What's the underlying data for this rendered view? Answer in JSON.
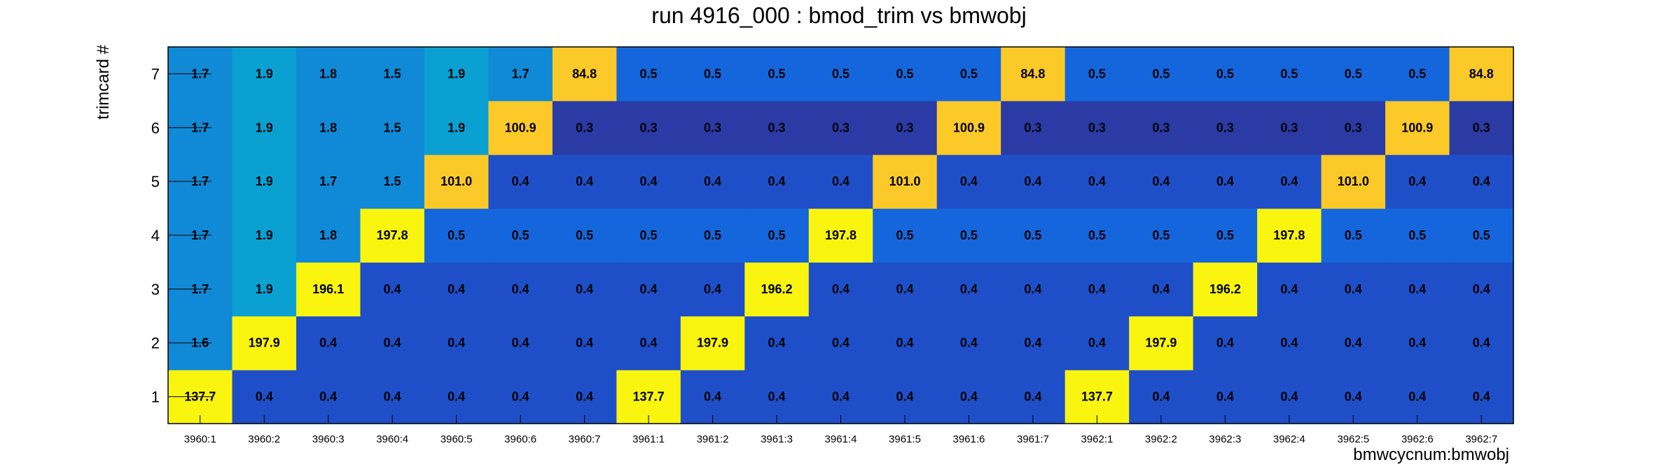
{
  "chart_data": {
    "type": "heatmap",
    "title": "run 4916_000 : bmod_trim vs bmwobj",
    "xlabel": "bmwcycnum:bmwobj",
    "ylabel": "trimcard #",
    "x_categories": [
      "3960:1",
      "3960:2",
      "3960:3",
      "3960:4",
      "3960:5",
      "3960:6",
      "3960:7",
      "3961:1",
      "3961:2",
      "3961:3",
      "3961:4",
      "3961:5",
      "3961:6",
      "3961:7",
      "3962:1",
      "3962:2",
      "3962:3",
      "3962:4",
      "3962:5",
      "3962:6",
      "3962:7"
    ],
    "y_categories": [
      "1",
      "2",
      "3",
      "4",
      "5",
      "6",
      "7"
    ],
    "values": [
      [
        137.7,
        0.4,
        0.4,
        0.4,
        0.4,
        0.4,
        0.4,
        137.7,
        0.4,
        0.4,
        0.4,
        0.4,
        0.4,
        0.4,
        137.7,
        0.4,
        0.4,
        0.4,
        0.4,
        0.4,
        0.4
      ],
      [
        1.6,
        197.9,
        0.4,
        0.4,
        0.4,
        0.4,
        0.4,
        0.4,
        197.9,
        0.4,
        0.4,
        0.4,
        0.4,
        0.4,
        0.4,
        197.9,
        0.4,
        0.4,
        0.4,
        0.4,
        0.4
      ],
      [
        1.7,
        1.9,
        196.1,
        0.4,
        0.4,
        0.4,
        0.4,
        0.4,
        0.4,
        196.2,
        0.4,
        0.4,
        0.4,
        0.4,
        0.4,
        0.4,
        196.2,
        0.4,
        0.4,
        0.4,
        0.4
      ],
      [
        1.7,
        1.9,
        1.8,
        197.8,
        0.5,
        0.5,
        0.5,
        0.5,
        0.5,
        0.5,
        197.8,
        0.5,
        0.5,
        0.5,
        0.5,
        0.5,
        0.5,
        197.8,
        0.5,
        0.5,
        0.5
      ],
      [
        1.7,
        1.9,
        1.7,
        1.5,
        101.0,
        0.4,
        0.4,
        0.4,
        0.4,
        0.4,
        0.4,
        101.0,
        0.4,
        0.4,
        0.4,
        0.4,
        0.4,
        0.4,
        101.0,
        0.4,
        0.4
      ],
      [
        1.7,
        1.9,
        1.8,
        1.5,
        1.9,
        100.9,
        0.3,
        0.3,
        0.3,
        0.3,
        0.3,
        0.3,
        100.9,
        0.3,
        0.3,
        0.3,
        0.3,
        0.3,
        0.3,
        100.9,
        0.3
      ],
      [
        1.7,
        1.9,
        1.8,
        1.5,
        1.9,
        1.7,
        84.8,
        0.5,
        0.5,
        0.5,
        0.5,
        0.5,
        0.5,
        84.8,
        0.5,
        0.5,
        0.5,
        0.5,
        0.5,
        0.5,
        84.8
      ]
    ],
    "grid": false,
    "legend": "none",
    "colors": {
      "low_dark": "#2a3ba6",
      "low": "#1f4fc8",
      "low_light": "#1566dc",
      "mid_blue": "#1089d6",
      "mid_cyan": "#0aa0d2",
      "mid_yellow": "#fbc928",
      "high": "#f9f50f"
    }
  }
}
